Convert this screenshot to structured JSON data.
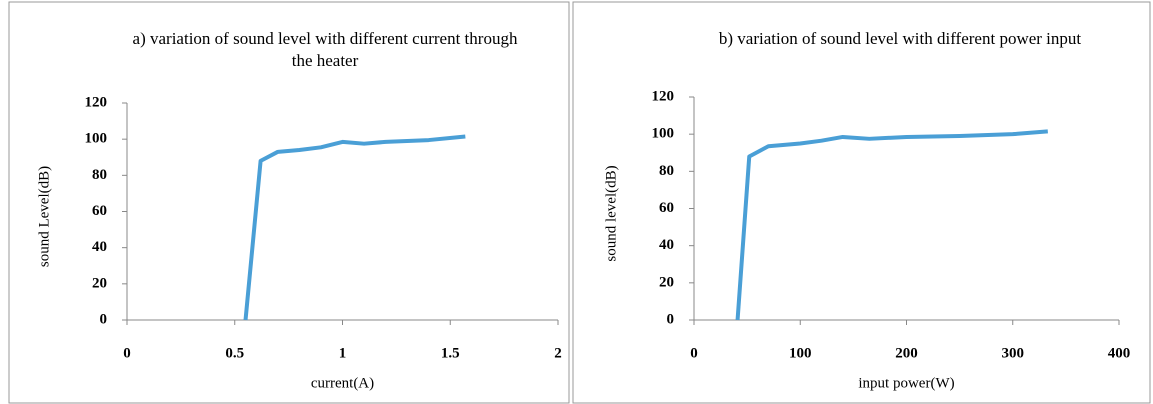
{
  "chart_data": [
    {
      "type": "line",
      "title": "a) variation of sound level with different current through the heater",
      "xlabel": "current(A)",
      "ylabel": "sound Level(dB)",
      "xlim": [
        0,
        2
      ],
      "xticks": [
        0,
        0.5,
        1,
        1.5,
        2
      ],
      "ylim": [
        0,
        120
      ],
      "yticks": [
        0,
        20,
        40,
        60,
        80,
        100,
        120
      ],
      "series": [
        {
          "color": "#4a9fd6",
          "x": [
            0.55,
            0.62,
            0.7,
            0.8,
            0.9,
            1.0,
            1.1,
            1.2,
            1.4,
            1.57
          ],
          "values": [
            0,
            88,
            93,
            94,
            95.5,
            98.5,
            97.5,
            98.5,
            99.5,
            101.5
          ]
        }
      ]
    },
    {
      "type": "line",
      "title": "b) variation of sound level with different power input",
      "xlabel": "input power(W)",
      "ylabel": "sound level(dB)",
      "xlim": [
        0,
        400
      ],
      "xticks": [
        0,
        100,
        200,
        300,
        400
      ],
      "ylim": [
        0,
        120
      ],
      "yticks": [
        0,
        20,
        40,
        60,
        80,
        100,
        120
      ],
      "series": [
        {
          "color": "#4a9fd6",
          "x": [
            41,
            52,
            70,
            100,
            120,
            140,
            165,
            200,
            250,
            300,
            333
          ],
          "values": [
            0,
            88,
            93.5,
            95,
            96.5,
            98.5,
            97.5,
            98.5,
            99,
            100,
            101.5
          ]
        }
      ]
    }
  ]
}
